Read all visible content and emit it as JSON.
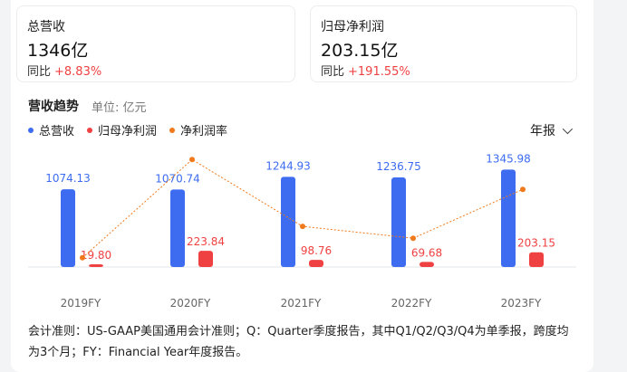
{
  "kpis": [
    {
      "title": "总营收",
      "value": "1346亿",
      "yoy_label": "同比",
      "yoy_value": "+8.83%"
    },
    {
      "title": "归母净利润",
      "value": "203.15亿",
      "yoy_label": "同比",
      "yoy_value": "+191.55%"
    }
  ],
  "section": {
    "title": "营收趋势",
    "unit": "单位: 亿元"
  },
  "legend": [
    {
      "label": "总营收",
      "color": "#3d6cf1"
    },
    {
      "label": "归母净利润",
      "color": "#f04142"
    },
    {
      "label": "净利润率",
      "color": "#f07a1b"
    }
  ],
  "period_selector": {
    "label": "年报"
  },
  "chart_data": {
    "type": "bar",
    "categories": [
      "2019FY",
      "2020FY",
      "2021FY",
      "2022FY",
      "2023FY"
    ],
    "series": [
      {
        "name": "总营收",
        "type": "bar",
        "color": "#3d6cf1",
        "values": [
          1074.13,
          1070.74,
          1244.93,
          1236.75,
          1345.98
        ],
        "labels": [
          "1074.13",
          "1070.74",
          "1244.93",
          "1236.75",
          "1345.98"
        ]
      },
      {
        "name": "归母净利润",
        "type": "bar",
        "color": "#f04142",
        "values": [
          19.8,
          223.84,
          98.76,
          69.68,
          203.15
        ],
        "labels": [
          "19.80",
          "223.84",
          "98.76",
          "69.68",
          "203.15"
        ]
      },
      {
        "name": "净利润率",
        "type": "line",
        "color": "#f07a1b",
        "values_pct": [
          1.8,
          20.9,
          7.9,
          5.6,
          15.1
        ]
      }
    ],
    "ylim": [
      0,
      1400
    ],
    "grid": false,
    "legend_position": "top-left"
  },
  "footnote": "会计准则：US-GAAP美国通用会计准则；Q：Quarter季度报告，其中Q1/Q2/Q3/Q4为单季报，跨度均为3个月；FY：Financial Year年度报告。"
}
